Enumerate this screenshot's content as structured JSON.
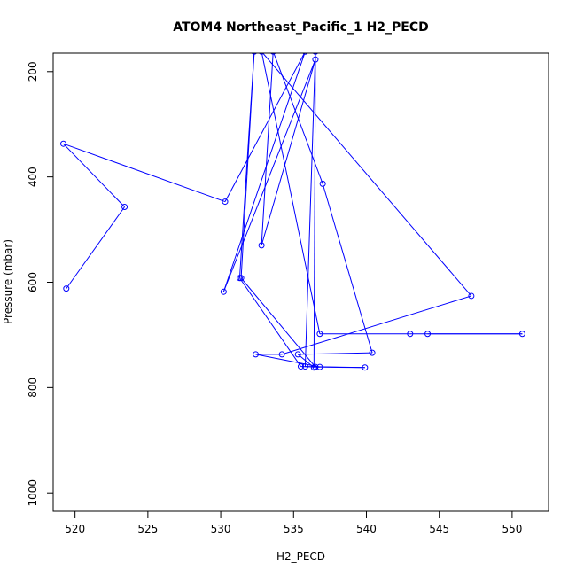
{
  "chart_data": {
    "type": "line",
    "title": "ATOM4 Northeast_Pacific_1 H2_PECD",
    "xlabel": "H2_PECD",
    "ylabel": "Pressure (mbar)",
    "xlim": [
      518.5,
      552.5
    ],
    "ylim": [
      1035,
      165
    ],
    "y_reversed": true,
    "grid": false,
    "line_color": "#0000ff",
    "marker": "open-circle",
    "x_ticks": [
      520,
      525,
      530,
      535,
      540,
      545,
      550
    ],
    "y_ticks": [
      200,
      400,
      600,
      800,
      1000
    ],
    "series": [
      {
        "points": [
          {
            "x": 519.4,
            "y": 612
          },
          {
            "x": 523.4,
            "y": 457
          },
          {
            "x": 519.2,
            "y": 337
          },
          {
            "x": 530.3,
            "y": 447
          },
          {
            "x": 535.8,
            "y": 162
          },
          {
            "x": 530.2,
            "y": 618
          },
          {
            "x": 536.5,
            "y": 177
          },
          {
            "x": 532.8,
            "y": 530
          },
          {
            "x": 533.6,
            "y": 162
          },
          {
            "x": 537.0,
            "y": 413
          },
          {
            "x": 540.4,
            "y": 734
          },
          {
            "x": 535.3,
            "y": 737
          },
          {
            "x": 536.4,
            "y": 762
          },
          {
            "x": 536.5,
            "y": 162
          },
          {
            "x": 535.8,
            "y": 760
          },
          {
            "x": 539.9,
            "y": 762
          },
          {
            "x": 536.5,
            "y": 761
          },
          {
            "x": 531.4,
            "y": 592
          },
          {
            "x": 532.3,
            "y": 162
          },
          {
            "x": 531.3,
            "y": 592
          },
          {
            "x": 535.5,
            "y": 760
          },
          {
            "x": 536.8,
            "y": 761
          },
          {
            "x": 532.4,
            "y": 737
          },
          {
            "x": 534.2,
            "y": 737
          },
          {
            "x": 547.2,
            "y": 626
          },
          {
            "x": 532.8,
            "y": 162
          },
          {
            "x": 536.8,
            "y": 698
          },
          {
            "x": 543.0,
            "y": 698
          },
          {
            "x": 550.7,
            "y": 698
          },
          {
            "x": 544.2,
            "y": 698
          }
        ]
      }
    ]
  }
}
